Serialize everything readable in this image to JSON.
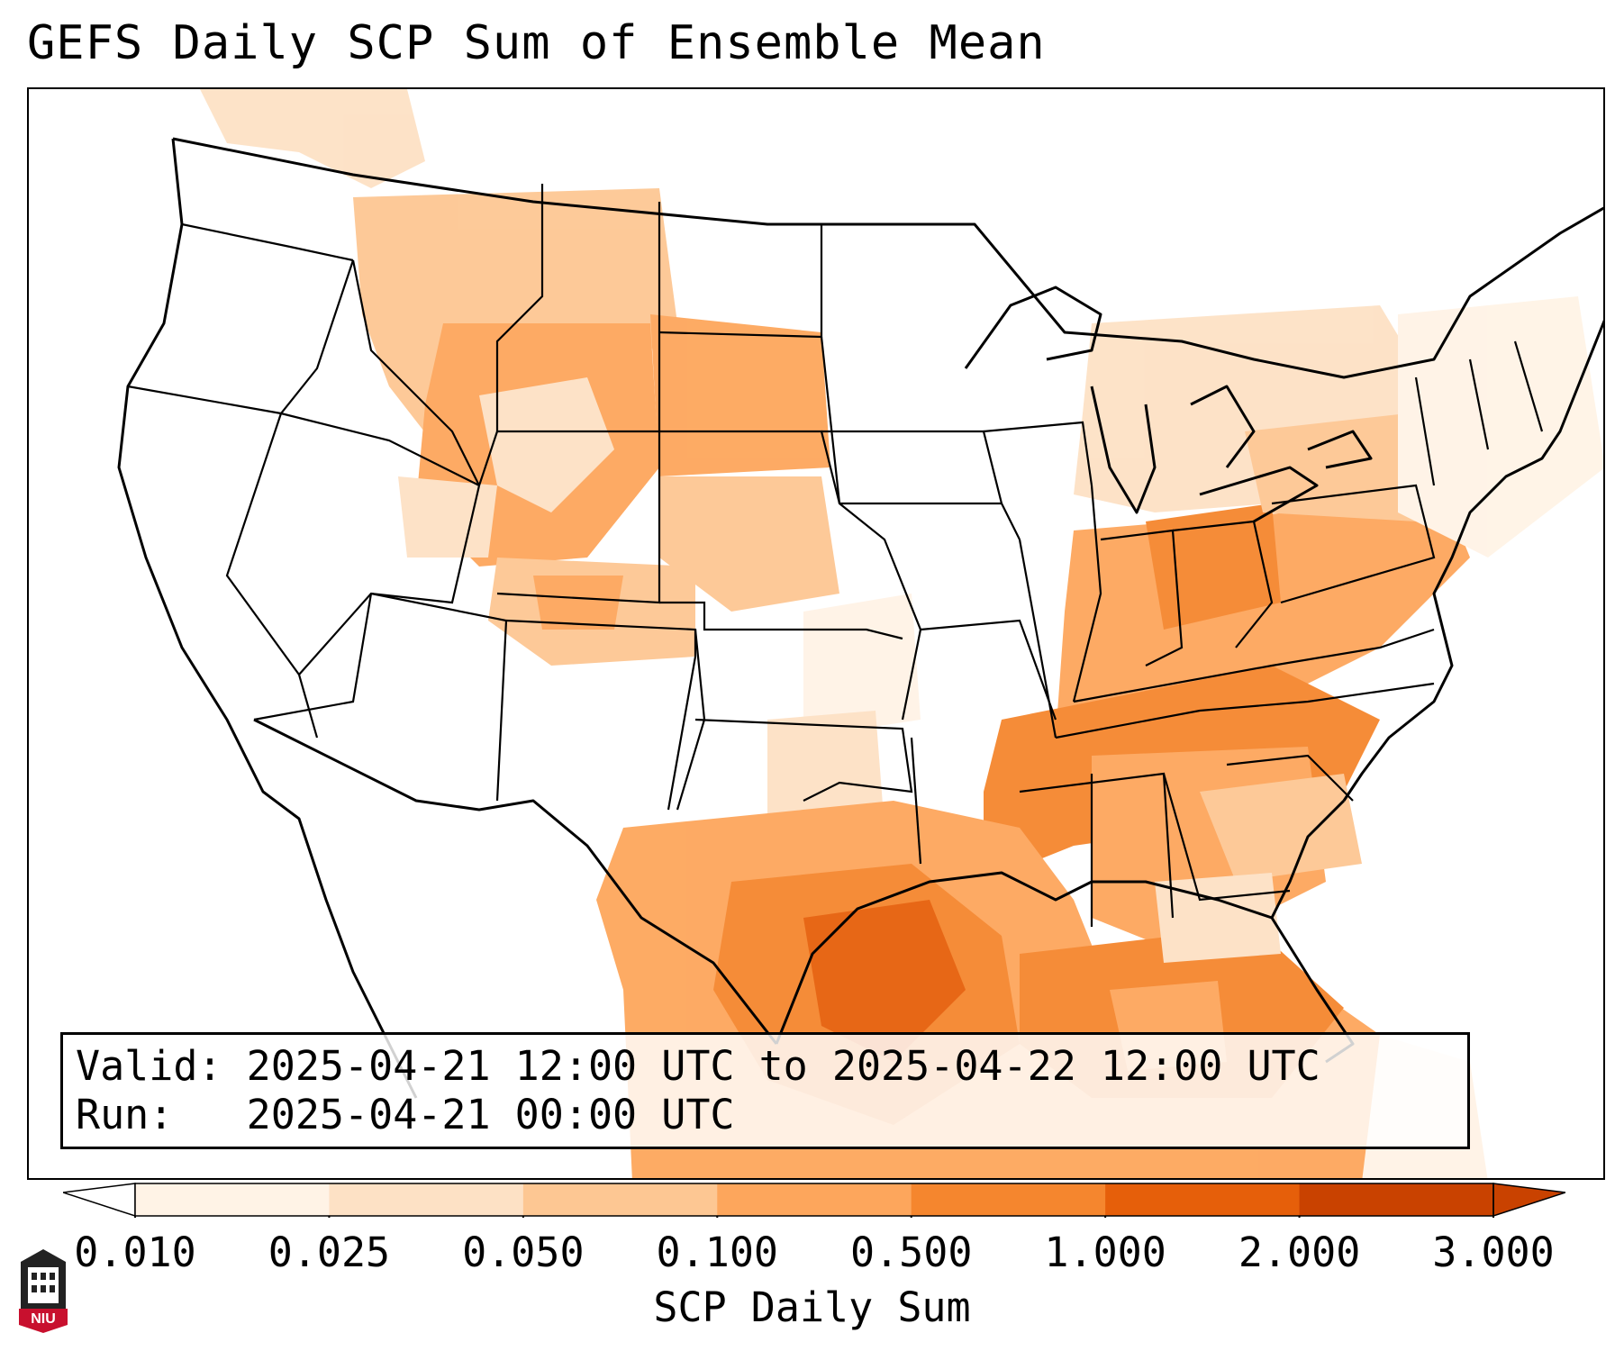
{
  "title": "GEFS Daily SCP Sum of Ensemble Mean",
  "info": {
    "valid_label": "Valid:",
    "valid_value": "2025-04-21 12:00 UTC to 2025-04-22 12:00 UTC",
    "run_label": "Run:",
    "run_value": "2025-04-21 00:00 UTC"
  },
  "colorbar": {
    "label": "SCP Daily Sum",
    "ticks": [
      "0.010",
      "0.025",
      "0.050",
      "0.100",
      "0.500",
      "1.000",
      "2.000",
      "3.000"
    ],
    "colors": [
      "#fff3e6",
      "#fde1c5",
      "#fdc793",
      "#fda65c",
      "#f5862e",
      "#e65f0a",
      "#c94200"
    ],
    "extend": "both"
  },
  "map": {
    "region": "CONUS",
    "field": "SCP Daily Sum",
    "grid_lines": false
  },
  "logo": {
    "name": "niu-logo",
    "text": "NIU",
    "color": "#c8102e"
  }
}
